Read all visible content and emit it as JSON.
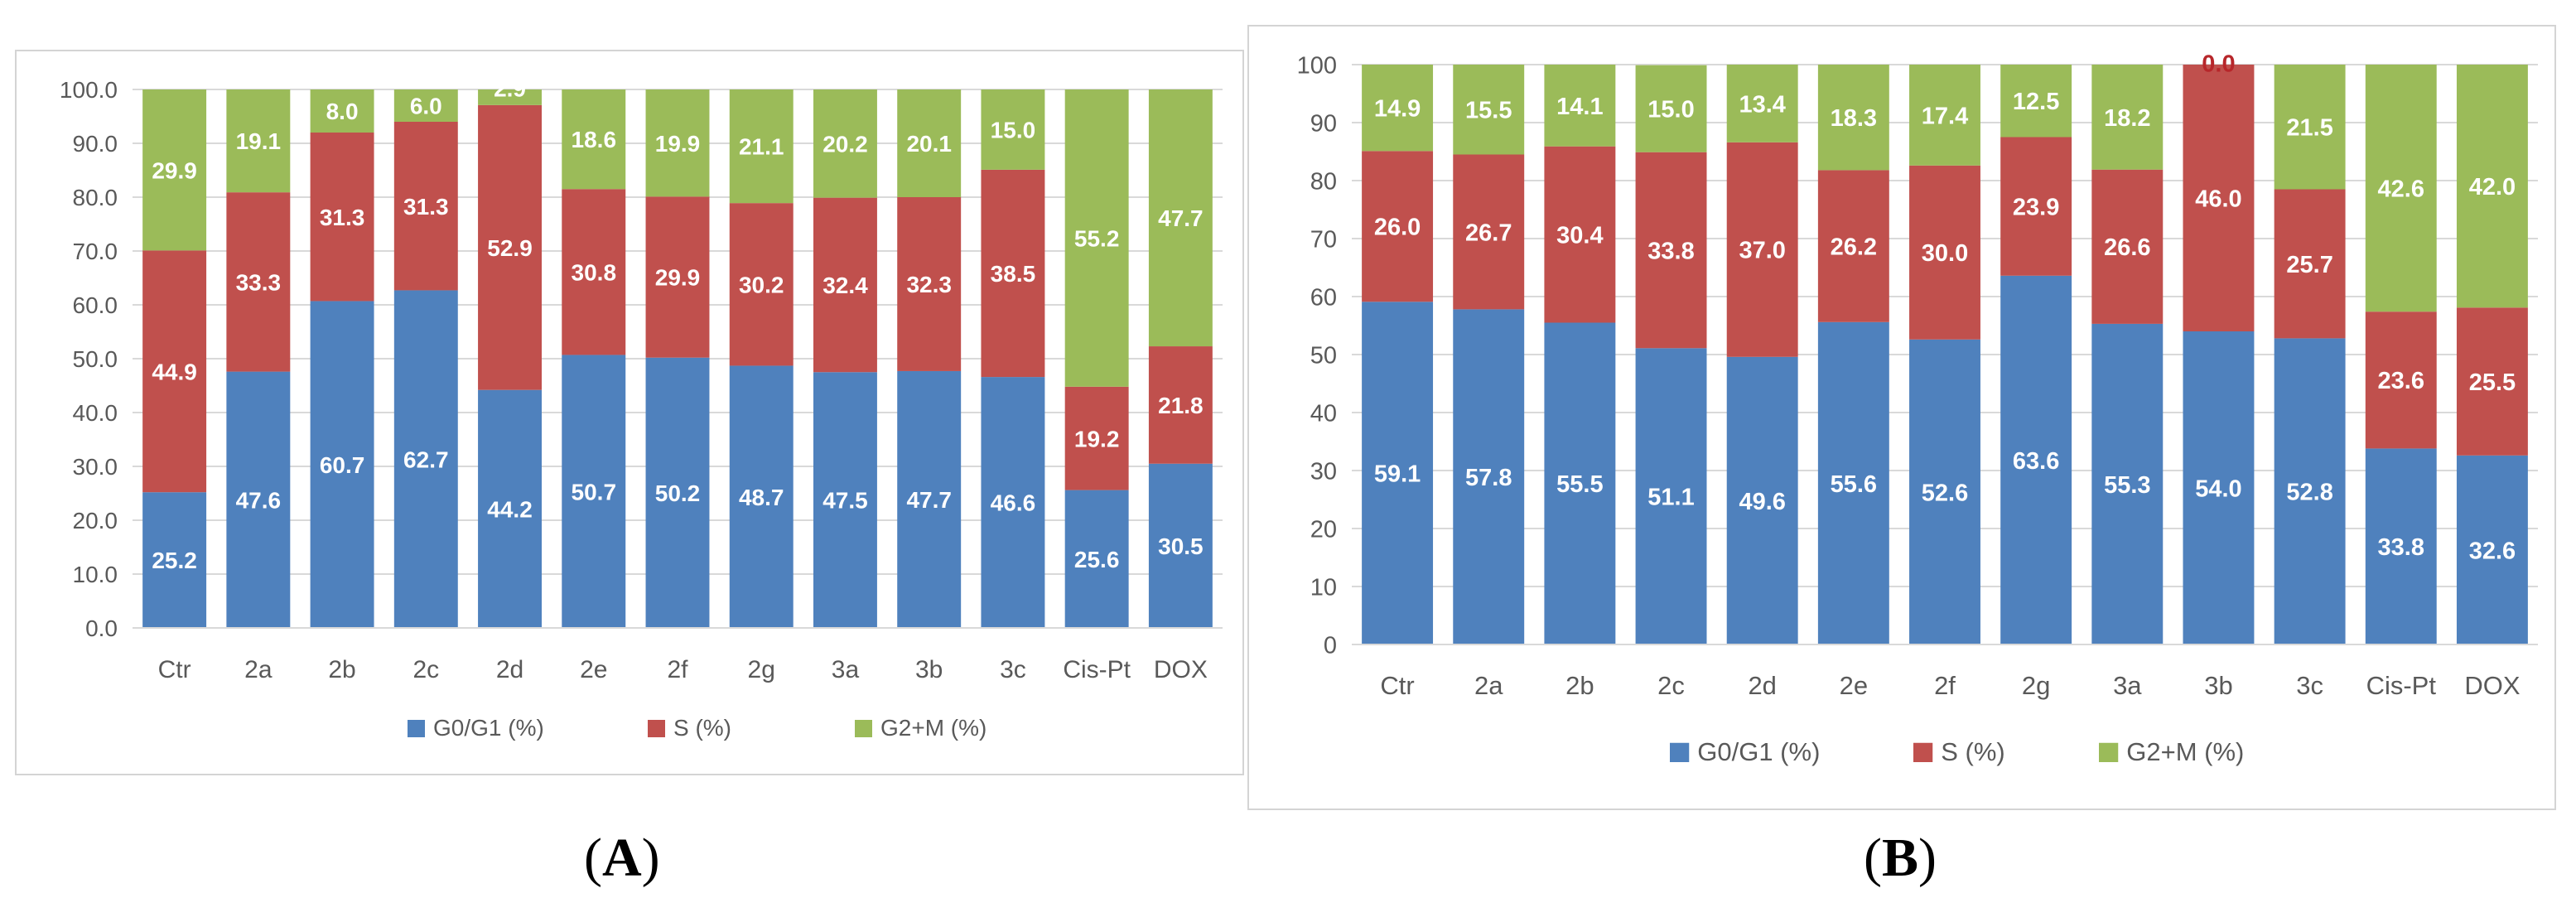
{
  "colors": {
    "g0g1": "#4f81bd",
    "s": "#c0504d",
    "g2m": "#9bbb59",
    "grid": "#d9d9d9",
    "axis_text": "#595959",
    "bar_label": "#ffffff",
    "zero_label": "#b7262a"
  },
  "panels": [
    {
      "open": "(",
      "letter": "A",
      "close": ")"
    },
    {
      "open": "(",
      "letter": "B",
      "close": ")"
    }
  ],
  "chart_data": [
    {
      "type": "bar",
      "stacked": true,
      "panel": "A",
      "title": "",
      "xlabel": "",
      "ylabel": "",
      "ylim": [
        0,
        100
      ],
      "yticks": [
        "0.0",
        "10.0",
        "20.0",
        "30.0",
        "40.0",
        "50.0",
        "60.0",
        "70.0",
        "80.0",
        "90.0",
        "100.0"
      ],
      "categories": [
        "Ctr",
        "2a",
        "2b",
        "2c",
        "2d",
        "2e",
        "2f",
        "2g",
        "3a",
        "3b",
        "3c",
        "Cis-Pt",
        "DOX"
      ],
      "series": [
        {
          "name": "G0/G1 (%)",
          "color_key": "g0g1",
          "values": [
            25.2,
            47.6,
            60.7,
            62.7,
            44.2,
            50.7,
            50.2,
            48.7,
            47.5,
            47.7,
            46.6,
            25.6,
            30.5
          ],
          "labels": [
            "25.2",
            "47.6",
            "60.7",
            "62.7",
            "44.2",
            "50.7",
            "50.2",
            "48.7",
            "47.5",
            "47.7",
            "46.6",
            "25.6",
            "30.5"
          ]
        },
        {
          "name": "S (%)",
          "color_key": "s",
          "values": [
            44.9,
            33.3,
            31.3,
            31.3,
            52.9,
            30.8,
            29.9,
            30.2,
            32.4,
            32.3,
            38.5,
            19.2,
            21.8
          ],
          "labels": [
            "44.9",
            "33.3",
            "31.3",
            "31.3",
            "52.9",
            "30.8",
            "29.9",
            "30.2",
            "32.4",
            "32.3",
            "38.5",
            "19.2",
            "21.8"
          ]
        },
        {
          "name": "G2+M (%)",
          "color_key": "g2m",
          "values": [
            29.9,
            19.1,
            8.0,
            6.0,
            2.9,
            18.6,
            19.9,
            21.1,
            20.2,
            20.1,
            15.0,
            55.2,
            47.7
          ],
          "labels": [
            "29.9",
            "19.1",
            "8.0",
            "6.0",
            "2.9",
            "18.6",
            "19.9",
            "21.1",
            "20.2",
            "20.1",
            "15.0",
            "55.2",
            "47.7"
          ]
        }
      ],
      "legend": [
        "G0/G1 (%)",
        "S (%)",
        "G2+M (%)"
      ],
      "legend_position": "bottom",
      "grid": true
    },
    {
      "type": "bar",
      "stacked": true,
      "panel": "B",
      "title": "",
      "xlabel": "",
      "ylabel": "",
      "ylim": [
        0,
        100
      ],
      "yticks": [
        "0",
        "10",
        "20",
        "30",
        "40",
        "50",
        "60",
        "70",
        "80",
        "90",
        "100"
      ],
      "categories": [
        "Ctr",
        "2a",
        "2b",
        "2c",
        "2d",
        "2e",
        "2f",
        "2g",
        "3a",
        "3b",
        "3c",
        "Cis-Pt",
        "DOX"
      ],
      "series": [
        {
          "name": "G0/G1 (%)",
          "color_key": "g0g1",
          "values": [
            59.1,
            57.8,
            55.5,
            51.1,
            49.6,
            55.6,
            52.6,
            63.6,
            55.3,
            54.0,
            52.8,
            33.8,
            32.6
          ],
          "labels": [
            "59.1",
            "57.8",
            "55.5",
            "51.1",
            "49.6",
            "55.6",
            "52.6",
            "63.6",
            "55.3",
            "54.0",
            "52.8",
            "33.8",
            "32.6"
          ]
        },
        {
          "name": "S (%)",
          "color_key": "s",
          "values": [
            26.0,
            26.7,
            30.4,
            33.8,
            37.0,
            26.2,
            30.0,
            23.9,
            26.6,
            46.0,
            25.7,
            23.6,
            25.5
          ],
          "labels": [
            "26.0",
            "26.7",
            "30.4",
            "33.8",
            "37.0",
            "26.2",
            "30.0",
            "23.9",
            "26.6",
            "46.0",
            "25.7",
            "23.6",
            "25.5"
          ]
        },
        {
          "name": "G2+M (%)",
          "color_key": "g2m",
          "values": [
            14.9,
            15.5,
            14.1,
            15.0,
            13.4,
            18.3,
            17.4,
            12.5,
            18.2,
            0.0,
            21.5,
            42.6,
            42.0
          ],
          "labels": [
            "14.9",
            "15.5",
            "14.1",
            "15.0",
            "13.4",
            "18.3",
            "17.4",
            "12.5",
            "18.2",
            "0.0",
            "21.5",
            "42.6",
            "42.0"
          ]
        }
      ],
      "legend": [
        "G0/G1  (%)",
        "S (%)",
        "G2+M (%)"
      ],
      "legend_position": "bottom",
      "grid": true
    }
  ]
}
